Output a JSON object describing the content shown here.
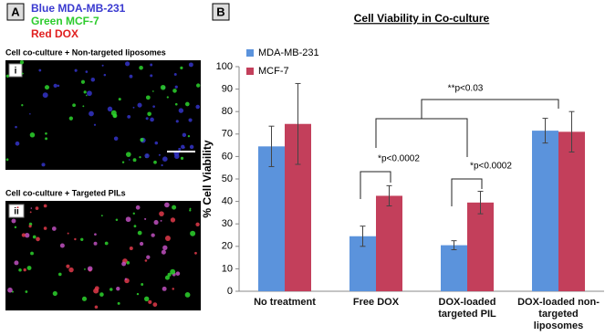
{
  "panel_a": {
    "label": "A",
    "legend": [
      "Blue MDA-MB-231",
      "Green MCF-7",
      "Red DOX"
    ],
    "images": [
      {
        "caption": "Cell co-culture + Non-targeted liposomes",
        "tag": "i"
      },
      {
        "caption": "Cell co-culture + Targeted PILs",
        "tag": "ii"
      }
    ]
  },
  "chart_data": {
    "type": "bar",
    "panel_label": "B",
    "title": "Cell Viability in Co-culture",
    "y_label": "% Cell Viability",
    "categories": [
      "No treatment",
      "Free DOX",
      "DOX-loaded targeted PIL",
      "DOX-loaded non-targeted liposomes"
    ],
    "series": [
      {
        "name": "MDA-MB-231",
        "color": "#5b93dc",
        "values": [
          64.5,
          24.5,
          20.5,
          71.5
        ],
        "errors": [
          9,
          4.5,
          2,
          5.5
        ]
      },
      {
        "name": "MCF-7",
        "color": "#c33f5b",
        "values": [
          74.5,
          42.5,
          39.5,
          71
        ],
        "errors": [
          18,
          4.5,
          5,
          9
        ]
      }
    ],
    "annotations": [
      "**p<0.03",
      "*p<0.0002",
      "*p<0.0002"
    ],
    "ylim": [
      0,
      100
    ],
    "yticks": [
      0,
      10,
      20,
      30,
      40,
      50,
      60,
      70,
      80,
      90,
      100
    ],
    "grid": false
  }
}
